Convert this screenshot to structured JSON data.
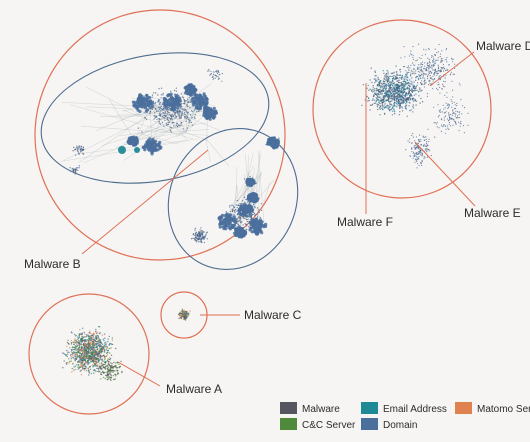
{
  "colors": {
    "background": "#f6f5f3",
    "outline_orange": "#e07055",
    "outline_blue": "#4e6d8f",
    "malware": "#55565f",
    "email_address": "#1d8a96",
    "matomo_server": "#e0824f",
    "cc_server": "#4f8a3c",
    "domain": "#4a6f9c"
  },
  "labels": {
    "malware_a": "Malware A",
    "malware_b": "Malware B",
    "malware_c": "Malware C",
    "malware_d": "Malware D",
    "malware_e": "Malware E",
    "malware_f": "Malware F"
  },
  "legend": [
    {
      "label": "Malware",
      "color": "#55565f"
    },
    {
      "label": "Email Address",
      "color": "#1d8a96"
    },
    {
      "label": "Matomo Ser",
      "color": "#e0824f"
    },
    {
      "label": "C&C Server",
      "color": "#4f8a3c"
    },
    {
      "label": "Domain",
      "color": "#4a6f9c"
    }
  ]
}
